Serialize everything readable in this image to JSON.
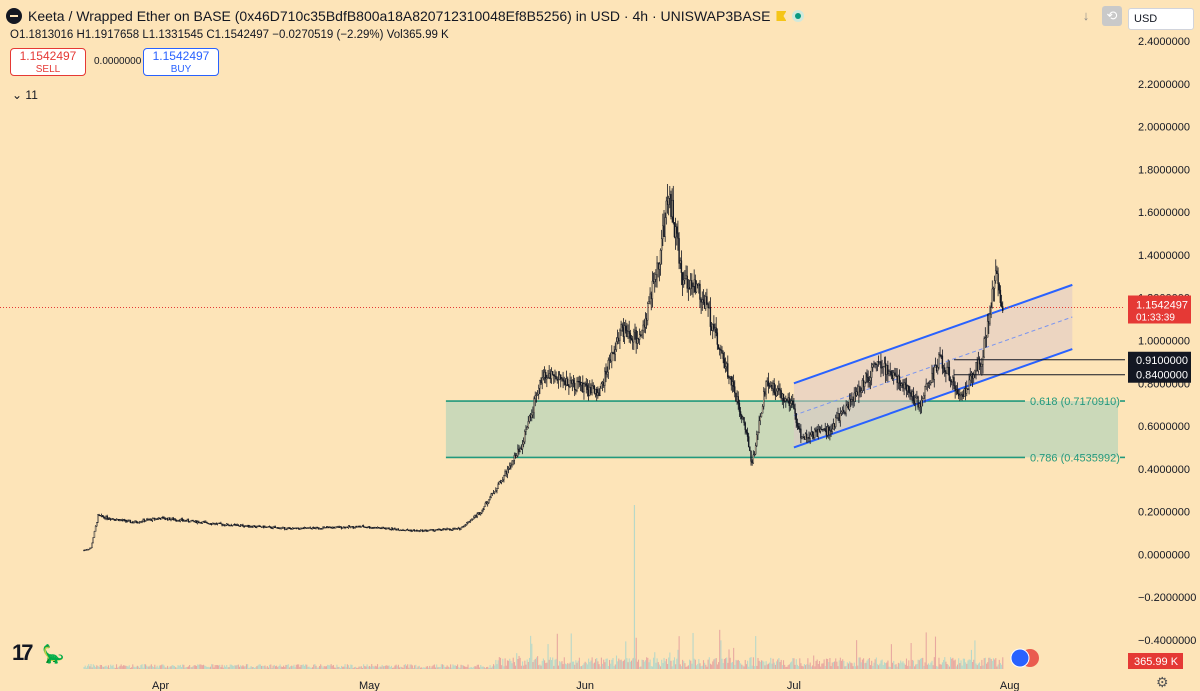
{
  "header": {
    "title": "Keeta / Wrapped Ether on BASE (0x46D710c35BdfB800a18A820712310048Ef8B5256) in USD · 4h · UNISWAP3BASE"
  },
  "ohlc": {
    "open": "O1.1813016",
    "high": "H1.1917658",
    "low": "L1.1331545",
    "close": "C1.1542497",
    "change": "−0.0270519 (−2.29%)",
    "volume": "Vol365.99 K"
  },
  "trade": {
    "sell_price": "1.1542497",
    "sell_label": "SELL",
    "spread": "0.0000000",
    "buy_price": "1.1542497",
    "buy_label": "BUY"
  },
  "indicators_toggle": "11",
  "toolbar": {
    "currency": "USD",
    "down_icon": "↓",
    "replay_icon": "⟲"
  },
  "colors": {
    "background": "#fde4b8",
    "candle": "#131722",
    "channel": "#2962ff",
    "fib": "#22997d",
    "price_tag": "#e53935",
    "volume": "#e8a8a0"
  },
  "chart_data": {
    "type": "candlestick",
    "interval": "4h",
    "ylim": [
      -0.46,
      2.46
    ],
    "y_ticks": [
      "2.4000000",
      "2.2000000",
      "2.0000000",
      "1.8000000",
      "1.6000000",
      "1.4000000",
      "1.2000000",
      "1.0000000",
      "0.8000000",
      "0.6000000",
      "0.4000000",
      "0.2000000",
      "0.0000000",
      "−0.2000000",
      "−0.4000000"
    ],
    "y_tick_values": [
      2.4,
      2.2,
      2.0,
      1.8,
      1.6,
      1.4,
      1.2,
      1.0,
      0.8,
      0.6,
      0.4,
      0.2,
      0.0,
      -0.2,
      -0.4
    ],
    "x_ticks": [
      "Apr",
      "May",
      "Jun",
      "Jul",
      "Aug"
    ],
    "x_tick_dates": [
      "2025-04-01",
      "2025-05-01",
      "2025-06-01",
      "2025-07-01",
      "2025-08-01"
    ],
    "date_range": [
      "2025-03-20",
      "2025-08-10"
    ],
    "price_path": [
      [
        "2025-03-21",
        0.02
      ],
      [
        "2025-03-22",
        0.03
      ],
      [
        "2025-03-23",
        0.18
      ],
      [
        "2025-03-28",
        0.15
      ],
      [
        "2025-04-01",
        0.17
      ],
      [
        "2025-04-10",
        0.14
      ],
      [
        "2025-04-20",
        0.12
      ],
      [
        "2025-04-30",
        0.13
      ],
      [
        "2025-05-08",
        0.11
      ],
      [
        "2025-05-14",
        0.12
      ],
      [
        "2025-05-17",
        0.2
      ],
      [
        "2025-05-20",
        0.35
      ],
      [
        "2025-05-23",
        0.52
      ],
      [
        "2025-05-26",
        0.85
      ],
      [
        "2025-05-30",
        0.8
      ],
      [
        "2025-06-03",
        0.75
      ],
      [
        "2025-06-06",
        1.05
      ],
      [
        "2025-06-09",
        1.0
      ],
      [
        "2025-06-12",
        1.45
      ],
      [
        "2025-06-13",
        1.7
      ],
      [
        "2025-06-15",
        1.3
      ],
      [
        "2025-06-18",
        1.2
      ],
      [
        "2025-06-21",
        0.9
      ],
      [
        "2025-06-24",
        0.6
      ],
      [
        "2025-06-25",
        0.42
      ],
      [
        "2025-06-27",
        0.8
      ],
      [
        "2025-06-30",
        0.72
      ],
      [
        "2025-07-01",
        0.68
      ],
      [
        "2025-07-02",
        0.55
      ],
      [
        "2025-07-06",
        0.58
      ],
      [
        "2025-07-10",
        0.75
      ],
      [
        "2025-07-13",
        0.9
      ],
      [
        "2025-07-16",
        0.82
      ],
      [
        "2025-07-19",
        0.7
      ],
      [
        "2025-07-22",
        0.92
      ],
      [
        "2025-07-25",
        0.74
      ],
      [
        "2025-07-28",
        0.92
      ],
      [
        "2025-07-30",
        1.3
      ],
      [
        "2025-07-31",
        1.1542497
      ]
    ],
    "fib_levels": [
      {
        "label": "0.618 (0.7170910)",
        "value": 0.717091
      },
      {
        "label": "0.786 (0.4535992)",
        "value": 0.4535992
      }
    ],
    "fib_zone_start": "2025-05-12",
    "channel": {
      "upper": [
        [
          "2025-07-01",
          0.8
        ],
        [
          "2025-08-10",
          1.26
        ]
      ],
      "lower": [
        [
          "2025-07-01",
          0.5
        ],
        [
          "2025-08-10",
          0.96
        ]
      ],
      "mid": [
        [
          "2025-07-01",
          0.65
        ],
        [
          "2025-08-10",
          1.11
        ]
      ]
    },
    "horizontal_levels": [
      {
        "label": "0.9100000",
        "value": 0.91,
        "from": "2025-07-24"
      },
      {
        "label": "0.8400000",
        "value": 0.84,
        "from": "2025-07-24"
      }
    ],
    "last_price": {
      "label": "1.1542497",
      "value": 1.1542497,
      "countdown": "01:33:39"
    },
    "volume_last": "365.99 K"
  }
}
